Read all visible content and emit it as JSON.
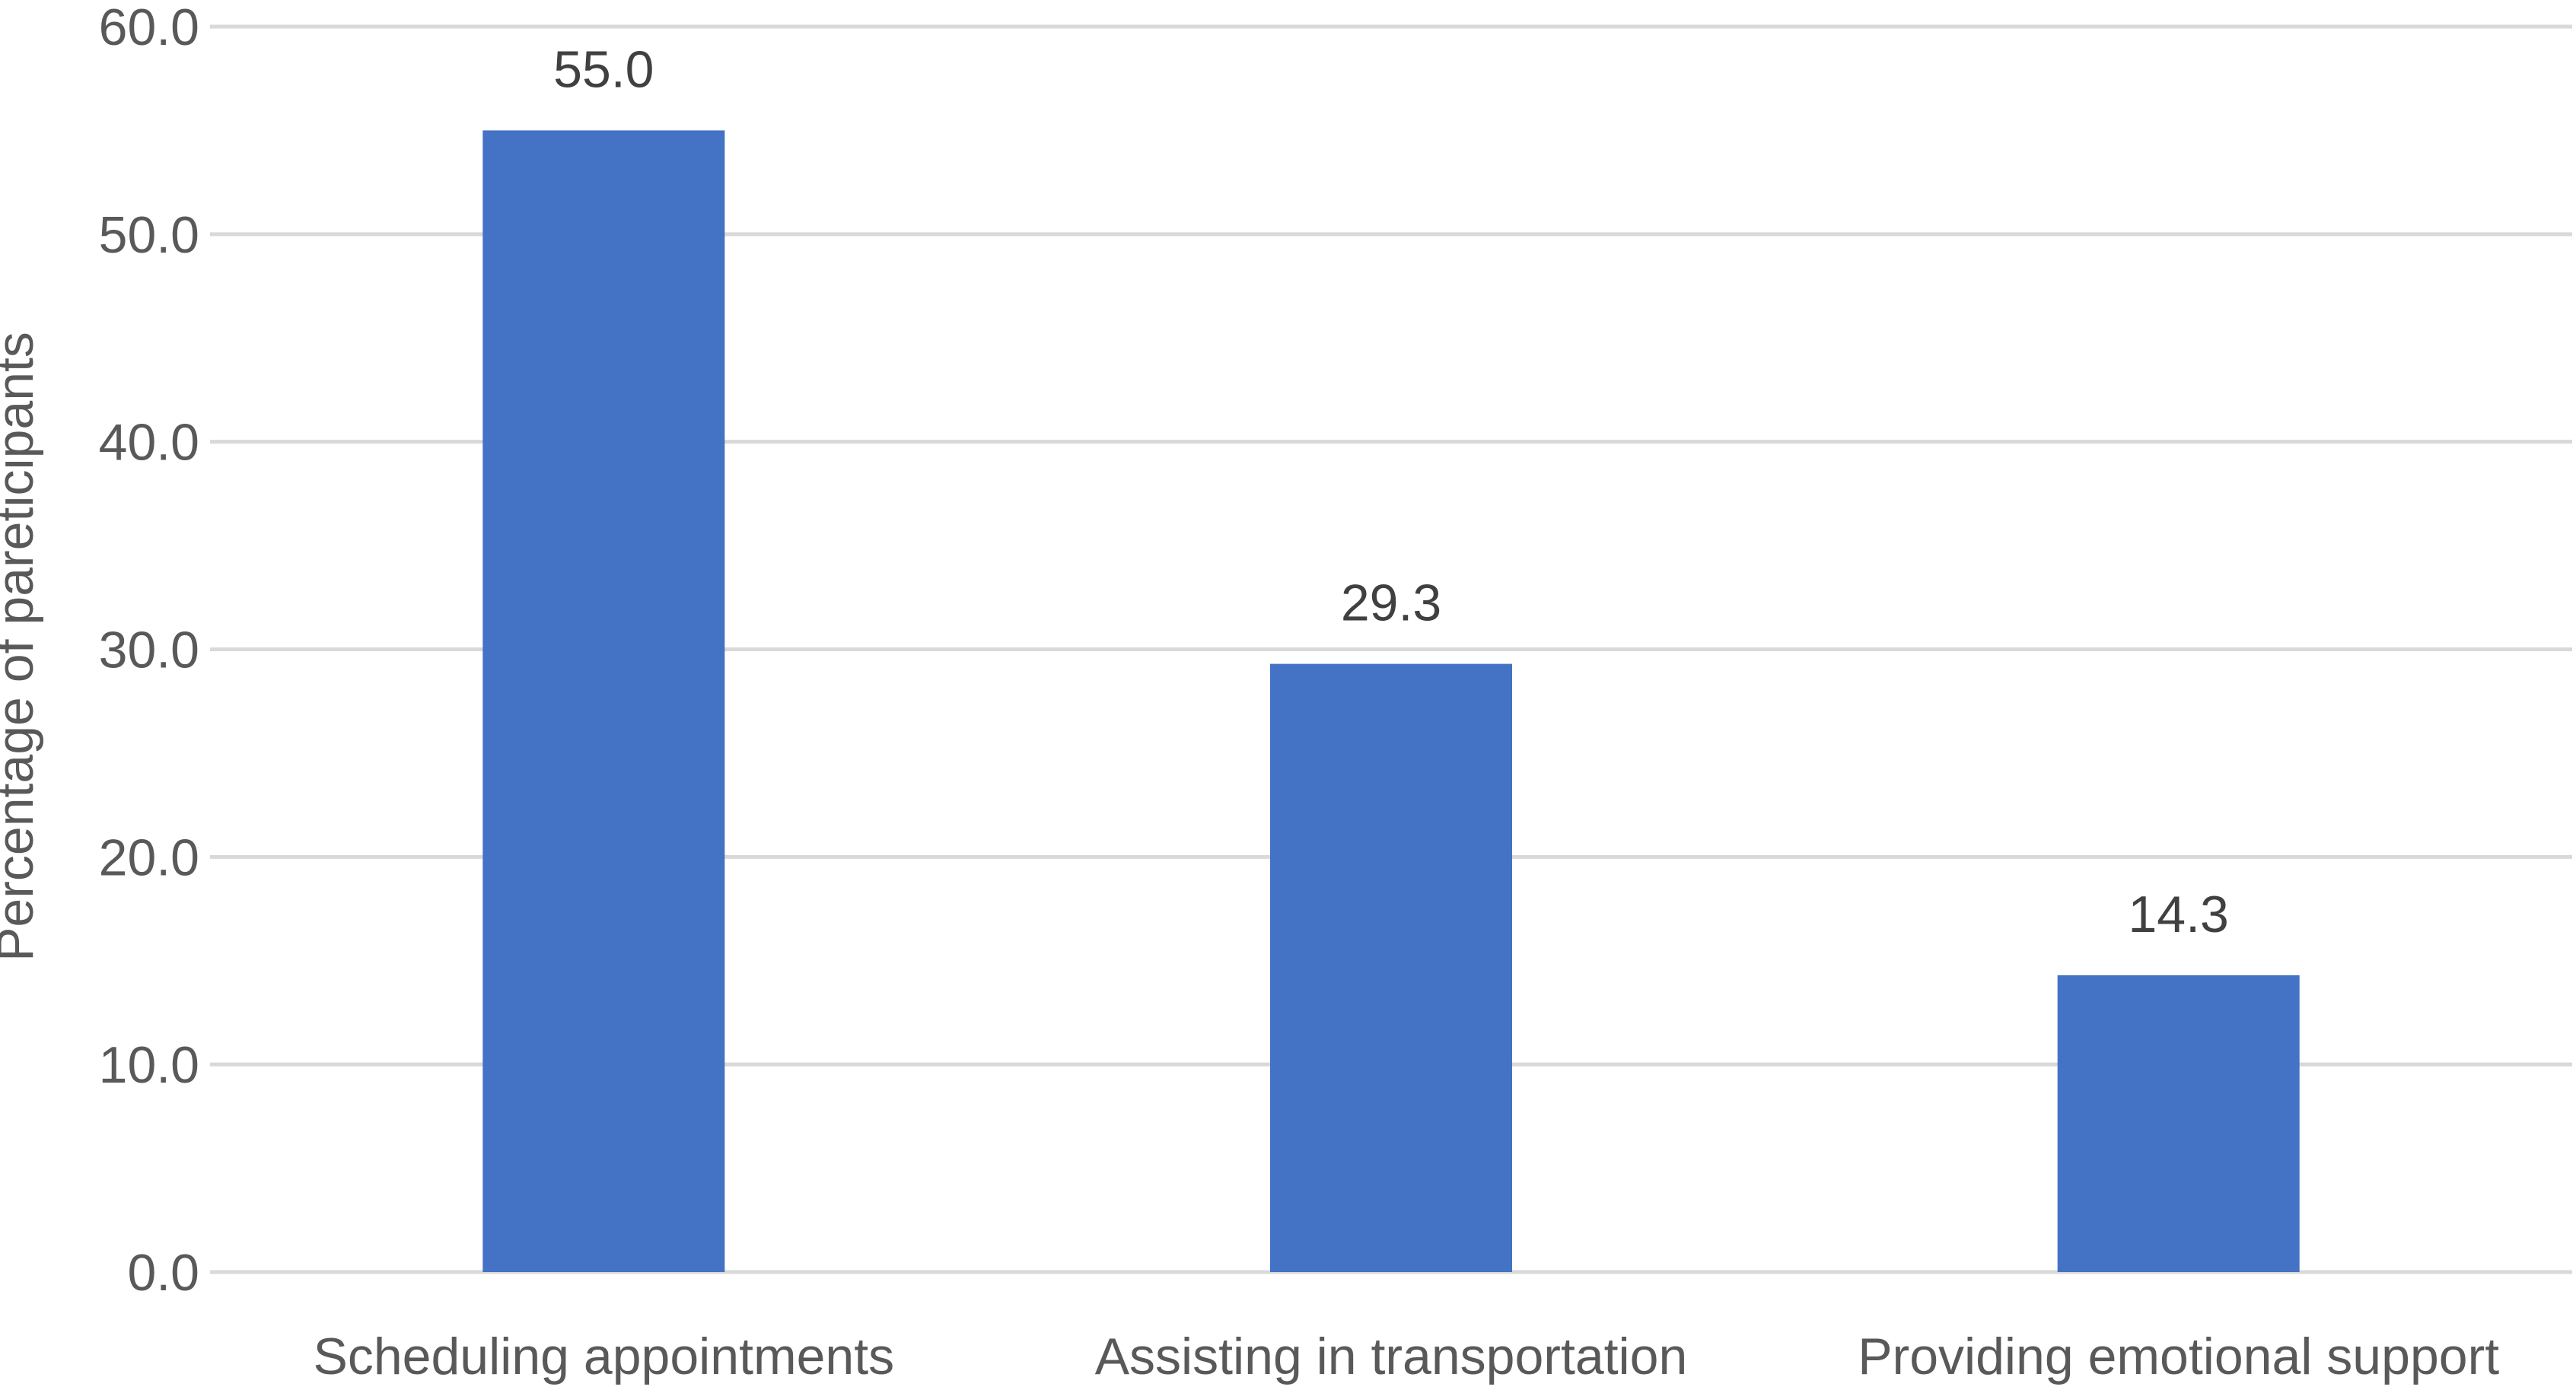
{
  "chart_data": {
    "type": "bar",
    "categories": [
      "Scheduling appointments",
      "Assisting in transportation",
      "Providing emotional support"
    ],
    "values": [
      55.0,
      29.3,
      14.3
    ],
    "data_labels": [
      "55.0",
      "29.3",
      "14.3"
    ],
    "title": "",
    "xlabel": "",
    "ylabel": "Percentage of pareticipants",
    "ylim": [
      0,
      60
    ],
    "yticks": [
      "0.0",
      "10.0",
      "20.0",
      "30.0",
      "40.0",
      "50.0",
      "60.0"
    ],
    "grid": true,
    "legend": "none",
    "colors": {
      "bar": "#4472C4",
      "grid": "#D9D9D9",
      "text": "#595959",
      "data_label": "#404040"
    }
  }
}
